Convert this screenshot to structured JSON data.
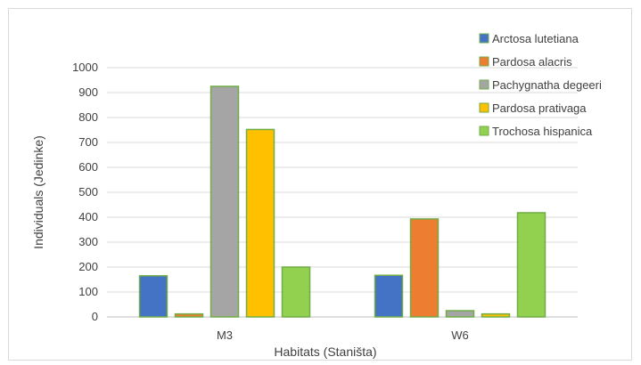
{
  "chart_data": {
    "type": "bar",
    "title": "",
    "xlabel": "Habitats (Staništa)",
    "ylabel": "Individuals (Jedinke)",
    "ylim": [
      0,
      1000
    ],
    "yticks": [
      0,
      100,
      200,
      300,
      400,
      500,
      600,
      700,
      800,
      900,
      1000
    ],
    "categories": [
      "M3",
      "W6"
    ],
    "grid": true,
    "legend_position": "right",
    "series": [
      {
        "name": "Arctosa lutetiana",
        "color": "#4472c4",
        "values": [
          165,
          167
        ]
      },
      {
        "name": "Pardosa alacris",
        "color": "#ed7d31",
        "values": [
          12,
          393
        ]
      },
      {
        "name": "Pachygnatha degeeri",
        "color": "#a5a5a5",
        "values": [
          925,
          25
        ]
      },
      {
        "name": "Pardosa prativaga",
        "color": "#ffc000",
        "values": [
          752,
          12
        ]
      },
      {
        "name": "Trochosa hispanica",
        "color": "#92d050",
        "values": [
          200,
          418
        ]
      }
    ]
  }
}
